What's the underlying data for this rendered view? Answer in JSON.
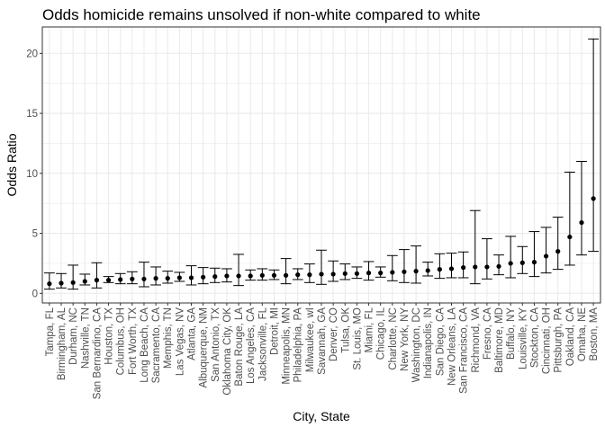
{
  "chart_data": {
    "type": "scatter",
    "title": "Odds homicide remains unsolved if non-white compared to white",
    "xlabel": "City, State",
    "ylabel": "Odds Ratio",
    "ylim": [
      -0.8,
      22.2
    ],
    "yticks": [
      0,
      5,
      10,
      15,
      20
    ],
    "grid": true,
    "theme": "bw",
    "point_color": "#000000",
    "errorbar_color": "#000000",
    "grid_color": "#ebebeb",
    "panel_border_color": "#333333",
    "categories": [
      "Tampa, FL",
      "Birmingham, AL",
      "Durham, NC",
      "Nashville, TN",
      "San Bernardino, CA",
      "Houston, TX",
      "Columbus, OH",
      "Fort Worth, TX",
      "Long Beach, CA",
      "Sacramento, CA",
      "Memphis, TN",
      "Las Vegas, NV",
      "Atlanta, GA",
      "Albuquerque, NM",
      "San Antonio, TX",
      "Oklahoma City, OK",
      "Baton Rouge, LA",
      "Los Angeles, CA",
      "Jacksonville, FL",
      "Detroit, MI",
      "Minneapolis, MN",
      "Philadelphia, PA",
      "Milwaukee, wI",
      "Savannah, GA",
      "Denver, CO",
      "Tulsa, OK",
      "St. Louis, MO",
      "Miami, FL",
      "Chicago, IL",
      "Charlotte, NC",
      "New York, NY",
      "Washington, DC",
      "Indianapolis, IN",
      "San Diego, CA",
      "New Orleans, LA",
      "San Francisco, CA",
      "Richmond, VA",
      "Fresno, CA",
      "Baltimore, MD",
      "Buffalo, NY",
      "Louisville, KY",
      "Stockton, CA",
      "Cincinnati, OH",
      "Pittsburgh, PA",
      "Oakland, CA",
      "Omaha, NE",
      "Boston, MA"
    ],
    "series": [
      {
        "estimate": [
          0.8,
          0.85,
          0.9,
          1.0,
          1.1,
          1.1,
          1.15,
          1.2,
          1.2,
          1.25,
          1.25,
          1.3,
          1.3,
          1.35,
          1.4,
          1.45,
          1.45,
          1.45,
          1.5,
          1.5,
          1.5,
          1.55,
          1.55,
          1.6,
          1.6,
          1.65,
          1.65,
          1.7,
          1.7,
          1.75,
          1.8,
          1.85,
          1.9,
          2.0,
          2.05,
          2.15,
          2.2,
          2.2,
          2.25,
          2.5,
          2.55,
          2.6,
          3.1,
          3.5,
          4.7,
          5.9,
          7.9
        ],
        "lower": [
          0.35,
          0.45,
          0.35,
          0.7,
          0.45,
          0.9,
          0.8,
          0.8,
          0.55,
          0.7,
          0.85,
          1.0,
          0.7,
          0.8,
          0.9,
          0.95,
          0.65,
          1.1,
          1.1,
          1.15,
          0.8,
          1.15,
          0.9,
          0.75,
          1.0,
          1.15,
          1.25,
          1.1,
          1.35,
          1.05,
          0.9,
          0.85,
          1.45,
          1.25,
          1.3,
          1.3,
          0.8,
          1.2,
          1.55,
          1.3,
          1.65,
          1.4,
          1.7,
          2.0,
          2.35,
          3.2,
          3.5
        ],
        "upper": [
          1.7,
          1.65,
          2.35,
          1.6,
          2.55,
          1.4,
          1.65,
          1.8,
          2.6,
          2.2,
          1.85,
          1.75,
          2.3,
          2.15,
          2.1,
          2.05,
          3.25,
          1.95,
          2.05,
          1.95,
          2.9,
          2.05,
          2.45,
          3.6,
          2.7,
          2.45,
          2.2,
          2.65,
          2.2,
          3.15,
          3.65,
          3.95,
          2.6,
          3.3,
          3.35,
          3.45,
          6.9,
          4.55,
          3.2,
          4.75,
          3.9,
          5.15,
          5.5,
          6.35,
          10.1,
          11.0,
          21.2
        ]
      }
    ]
  }
}
